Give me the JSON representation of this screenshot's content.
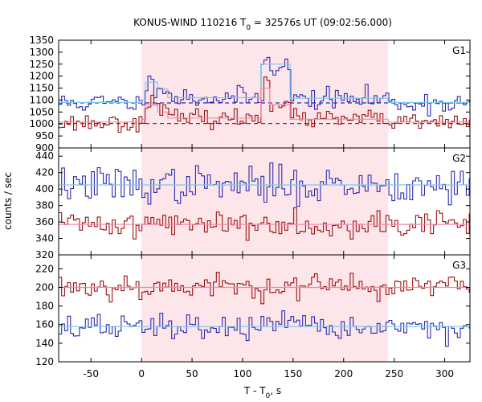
{
  "chart_data": {
    "type": "line",
    "title": {
      "main": "KONUS-WIND 110216 T",
      "sub": "0",
      "rest": " = 32576s UT (09:02:56.000)"
    },
    "xlabel": {
      "main": "T - T",
      "sub": "0",
      "rest": ", s"
    },
    "ylabel": "counts / sec",
    "xlim": [
      -82,
      325
    ],
    "xticks": [
      -50,
      0,
      50,
      100,
      150,
      200,
      250,
      300
    ],
    "highlight_interval": [
      0,
      244
    ],
    "colors": {
      "highlight": "#fde6ea",
      "series_blue": "#2b2bb0",
      "series_red": "#a01010",
      "fit_blue": "#7ec8ee",
      "fit_red": "#f08aa8",
      "bg_blue": "#2b2bb0",
      "bg_red": "#c0141a"
    },
    "panels": [
      {
        "label": "G1",
        "ylim": [
          900,
          1350
        ],
        "yticks": [
          900,
          950,
          1000,
          1050,
          1100,
          1150,
          1200,
          1250,
          1300,
          1350
        ],
        "series": [
          {
            "color": "#2b2bb0",
            "bin": 2.944,
            "x0": -82,
            "x1": 325,
            "base": 1088,
            "noise": 22,
            "seed": 11,
            "bumps": [
              {
                "start": 0,
                "end": 4,
                "level": 1100
              },
              {
                "start": 4,
                "end": 26,
                "level": 1165
              },
              {
                "start": 26,
                "end": 118,
                "level": 1110
              },
              {
                "start": 118,
                "end": 122,
                "level": 1230
              },
              {
                "start": 122,
                "end": 127,
                "level": 1300
              },
              {
                "start": 127,
                "end": 147,
                "level": 1240
              },
              {
                "start": 147,
                "end": 244,
                "level": 1105
              }
            ]
          },
          {
            "color": "#a01010",
            "bin": 2.944,
            "x0": -82,
            "x1": 325,
            "base": 1005,
            "noise": 18,
            "seed": 23,
            "bumps": [
              {
                "start": 0,
                "end": 4,
                "level": 1020
              },
              {
                "start": 4,
                "end": 26,
                "level": 1085
              },
              {
                "start": 26,
                "end": 118,
                "level": 1022
              },
              {
                "start": 118,
                "end": 122,
                "level": 1120
              },
              {
                "start": 122,
                "end": 127,
                "level": 1195
              },
              {
                "start": 127,
                "end": 147,
                "level": 1090
              },
              {
                "start": 147,
                "end": 244,
                "level": 1020
              }
            ]
          }
        ],
        "fits": [
          {
            "color": "#7ec8ee",
            "points": [
              [
                -82,
                1090
              ],
              [
                0,
                1090
              ],
              [
                0,
                1100
              ],
              [
                4,
                1100
              ],
              [
                4,
                1175
              ],
              [
                16,
                1175
              ],
              [
                16,
                1145
              ],
              [
                26,
                1145
              ],
              [
                26,
                1110
              ],
              [
                118,
                1110
              ],
              [
                118,
                1250
              ],
              [
                147,
                1250
              ],
              [
                147,
                1108
              ],
              [
                244,
                1108
              ],
              [
                244,
                1090
              ],
              [
                325,
                1090
              ]
            ]
          },
          {
            "color": "#f08aa8",
            "points": [
              [
                -82,
                1008
              ],
              [
                0,
                1008
              ],
              [
                0,
                1020
              ],
              [
                4,
                1020
              ],
              [
                4,
                1080
              ],
              [
                16,
                1080
              ],
              [
                16,
                1050
              ],
              [
                26,
                1050
              ],
              [
                26,
                1025
              ],
              [
                118,
                1025
              ],
              [
                118,
                1150
              ],
              [
                127,
                1150
              ],
              [
                127,
                1080
              ],
              [
                147,
                1080
              ],
              [
                147,
                1020
              ],
              [
                244,
                1020
              ],
              [
                244,
                1008
              ],
              [
                325,
                1008
              ]
            ]
          }
        ],
        "backgrounds": [
          {
            "color": "#2b2bb0",
            "value": 1088,
            "x0": -82,
            "x1": 325
          },
          {
            "color": "#c0141a",
            "value": 1002,
            "x0": -82,
            "x1": 325
          }
        ]
      },
      {
        "label": "G2",
        "ylim": [
          320,
          450
        ],
        "yticks": [
          320,
          340,
          360,
          380,
          400,
          420,
          440
        ],
        "series": [
          {
            "color": "#2b2bb0",
            "bin": 2.944,
            "x0": -82,
            "x1": 325,
            "base": 405,
            "noise": 11,
            "seed": 37,
            "bumps": []
          },
          {
            "color": "#a01010",
            "bin": 2.944,
            "x0": -82,
            "x1": 325,
            "base": 358,
            "noise": 8,
            "seed": 41,
            "bumps": []
          }
        ],
        "fits": [
          {
            "color": "#7ec8ee",
            "points": [
              [
                -82,
                405
              ],
              [
                325,
                405
              ]
            ]
          },
          {
            "color": "#f08aa8",
            "points": [
              [
                -82,
                357
              ],
              [
                325,
                357
              ]
            ]
          }
        ],
        "backgrounds": []
      },
      {
        "label": "G3",
        "ylim": [
          120,
          235
        ],
        "yticks": [
          120,
          140,
          160,
          180,
          200,
          220
        ],
        "series": [
          {
            "color": "#a01010",
            "bin": 2.944,
            "x0": -82,
            "x1": 325,
            "base": 201,
            "noise": 7,
            "seed": 53,
            "bumps": []
          },
          {
            "color": "#2b2bb0",
            "bin": 2.944,
            "x0": -82,
            "x1": 325,
            "base": 157,
            "noise": 7,
            "seed": 67,
            "bumps": []
          }
        ],
        "fits": [
          {
            "color": "#f08aa8",
            "points": [
              [
                -82,
                200
              ],
              [
                325,
                200
              ]
            ]
          },
          {
            "color": "#7ec8ee",
            "points": [
              [
                -82,
                158
              ],
              [
                325,
                158
              ]
            ]
          }
        ],
        "backgrounds": []
      }
    ]
  }
}
